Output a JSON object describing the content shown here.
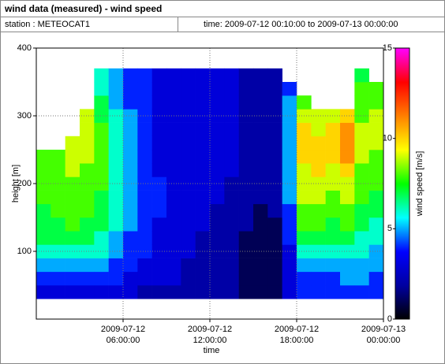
{
  "chart_data": {
    "type": "heatmap",
    "title": "wind data (measured) - wind speed",
    "station": "station : METEOCAT1",
    "time_range": "time: 2009-07-12 00:10:00 to 2009-07-13 00:00:00",
    "xlabel": "time",
    "ylabel": "height [m]",
    "zlabel": "wind speed [m/s]",
    "x": [
      0.5,
      1.5,
      2.5,
      3.5,
      4.5,
      5.5,
      6.5,
      7.5,
      8.5,
      9.5,
      10.5,
      11.5,
      12.5,
      13.5,
      14.5,
      15.5,
      16.5,
      17.5,
      18.5,
      19.5,
      20.5,
      21.5,
      22.5,
      23.5
    ],
    "y": [
      40,
      60,
      80,
      100,
      120,
      140,
      160,
      180,
      200,
      220,
      240,
      260,
      280,
      300,
      320,
      340,
      360
    ],
    "values": [
      [
        3,
        4,
        5,
        6,
        7,
        7,
        7,
        8,
        8,
        8,
        8,
        null,
        null,
        null,
        null,
        null,
        null
      ],
      [
        3,
        4,
        5,
        6,
        7,
        7,
        8,
        8,
        8,
        8,
        8,
        null,
        null,
        null,
        null,
        null,
        null
      ],
      [
        3,
        4,
        5,
        6,
        7,
        8,
        8,
        8,
        8,
        9,
        9,
        9,
        null,
        null,
        null,
        null,
        null
      ],
      [
        3,
        4,
        5,
        6,
        7,
        7,
        8,
        8,
        8,
        8,
        9,
        9,
        9,
        9,
        null,
        null,
        null
      ],
      [
        3,
        4,
        5,
        6,
        6,
        7,
        7,
        7,
        8,
        8,
        8,
        8,
        8,
        7,
        7,
        6,
        6
      ],
      [
        3,
        4,
        4,
        5,
        5,
        6,
        6,
        6,
        6,
        6,
        6,
        6,
        6,
        6,
        5,
        5,
        5
      ],
      [
        3,
        3,
        4,
        4,
        4,
        5,
        5,
        5,
        5,
        5,
        5,
        5,
        5,
        5,
        4,
        4,
        4
      ],
      [
        2,
        3,
        3,
        4,
        4,
        4,
        4,
        4,
        4,
        4,
        4,
        4,
        4,
        4,
        4,
        4,
        4
      ],
      [
        2,
        3,
        3,
        3,
        3,
        3,
        4,
        4,
        4,
        3,
        3,
        3,
        3,
        3,
        3,
        3,
        3
      ],
      [
        2,
        3,
        3,
        3,
        3,
        3,
        3,
        3,
        3,
        3,
        3,
        3,
        3,
        3,
        3,
        3,
        3
      ],
      [
        2,
        2,
        2,
        3,
        3,
        3,
        3,
        3,
        3,
        3,
        3,
        3,
        3,
        3,
        3,
        3,
        3
      ],
      [
        2,
        2,
        2,
        2,
        2,
        3,
        3,
        3,
        3,
        3,
        3,
        3,
        3,
        3,
        3,
        3,
        3
      ],
      [
        2,
        2,
        2,
        2,
        2,
        2,
        2,
        3,
        3,
        3,
        3,
        3,
        3,
        3,
        3,
        3,
        3
      ],
      [
        2,
        2,
        2,
        2,
        2,
        2,
        2,
        2,
        2,
        3,
        3,
        3,
        3,
        3,
        3,
        3,
        3
      ],
      [
        1,
        1,
        1,
        1,
        1,
        2,
        2,
        2,
        2,
        2,
        2,
        2,
        2,
        2,
        2,
        2,
        2
      ],
      [
        1,
        1,
        1,
        1,
        1,
        1,
        1,
        2,
        2,
        2,
        2,
        2,
        2,
        2,
        2,
        2,
        2
      ],
      [
        1,
        1,
        1,
        1,
        1,
        1,
        2,
        2,
        2,
        2,
        2,
        2,
        2,
        2,
        2,
        2,
        2
      ],
      [
        3,
        3,
        3,
        3,
        4,
        4,
        4,
        5,
        5,
        5,
        5,
        5,
        5,
        5,
        5,
        4,
        null
      ],
      [
        4,
        4,
        5,
        6,
        7,
        8,
        8,
        9,
        9,
        9,
        10,
        10,
        10,
        9,
        8,
        null,
        null
      ],
      [
        4,
        4,
        5,
        6,
        7,
        8,
        8,
        9,
        9,
        10,
        10,
        10,
        9,
        9,
        null,
        null,
        null
      ],
      [
        4,
        4,
        5,
        6,
        7,
        7,
        8,
        8,
        9,
        9,
        10,
        10,
        10,
        9,
        null,
        null,
        null
      ],
      [
        4,
        5,
        5,
        6,
        7,
        8,
        8,
        9,
        9,
        10,
        11,
        11,
        11,
        10,
        null,
        null,
        null
      ],
      [
        4,
        5,
        5,
        6,
        6,
        7,
        7,
        8,
        8,
        8,
        9,
        9,
        9,
        8,
        8,
        8,
        7
      ],
      [
        4,
        4,
        5,
        5,
        6,
        6,
        7,
        7,
        8,
        8,
        8,
        9,
        9,
        9,
        8,
        8,
        null
      ]
    ],
    "xlim": [
      0,
      24
    ],
    "xticks": [
      {
        "value": 6,
        "label": "2009-07-12 06:00:00"
      },
      {
        "value": 12,
        "label": "2009-07-12 12:00:00"
      },
      {
        "value": 18,
        "label": "2009-07-12 18:00:00"
      },
      {
        "value": 24,
        "label": "2009-07-13 00:00:00"
      }
    ],
    "ylim": [
      0,
      400
    ],
    "yticks": [
      100,
      200,
      300,
      400
    ],
    "zlim": [
      0,
      15
    ],
    "zticks": [
      0,
      5,
      10,
      15
    ],
    "colormap": [
      "#000000",
      "#0000a0",
      "#0000ff",
      "#00ffff",
      "#00ff00",
      "#ffff00",
      "#ff8000",
      "#ff0000",
      "#ff00ff"
    ],
    "grid": true
  }
}
